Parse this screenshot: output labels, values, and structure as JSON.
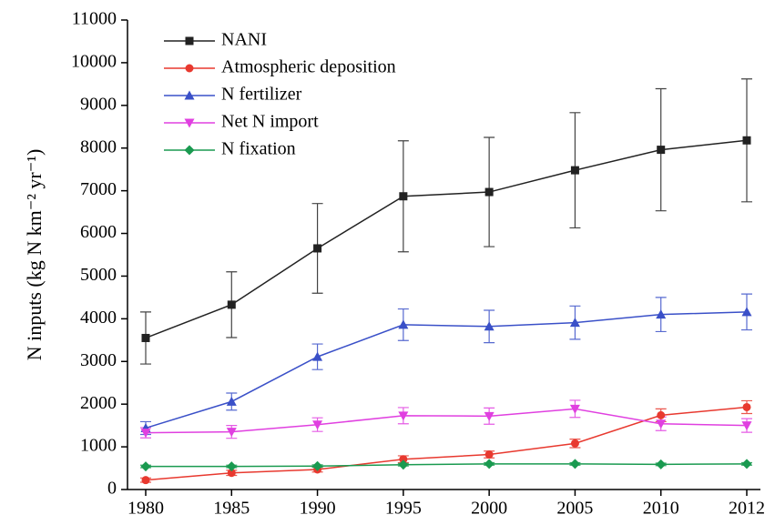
{
  "chart_data": {
    "type": "line",
    "ylabel": "N inputs (kg N km⁻² yr⁻¹)",
    "categories": [
      "1980",
      "1985",
      "1990",
      "1995",
      "2000",
      "2005",
      "2010",
      "2012"
    ],
    "ylim": [
      0,
      11000
    ],
    "yticks": [
      0,
      1000,
      2000,
      3000,
      4000,
      5000,
      6000,
      7000,
      8000,
      9000,
      10000,
      11000
    ],
    "legend": "upper left",
    "series": [
      {
        "name": "NANI",
        "color": "#222222",
        "marker": "square",
        "values": [
          3550,
          4330,
          5650,
          6870,
          6970,
          7480,
          7960,
          8180
        ],
        "errors": [
          610,
          770,
          1050,
          1300,
          1280,
          1350,
          1430,
          1440
        ]
      },
      {
        "name": "Atmospheric deposition",
        "color": "#e8392f",
        "marker": "circle",
        "values": [
          220,
          390,
          470,
          710,
          820,
          1080,
          1740,
          1930
        ],
        "errors": [
          50,
          60,
          60,
          80,
          80,
          100,
          150,
          150
        ]
      },
      {
        "name": "N fertilizer",
        "color": "#3a50c8",
        "marker": "triangle-up",
        "values": [
          1440,
          2060,
          3110,
          3860,
          3820,
          3910,
          4100,
          4160
        ],
        "errors": [
          150,
          200,
          300,
          370,
          380,
          390,
          400,
          420
        ]
      },
      {
        "name": "Net N import",
        "color": "#e040e0",
        "marker": "triangle-down",
        "values": [
          1330,
          1350,
          1520,
          1730,
          1720,
          1890,
          1540,
          1500
        ],
        "errors": [
          120,
          150,
          160,
          190,
          190,
          200,
          160,
          160
        ]
      },
      {
        "name": "N fixation",
        "color": "#1a9a50",
        "marker": "diamond",
        "values": [
          540,
          540,
          550,
          580,
          600,
          600,
          590,
          600
        ],
        "errors": [
          30,
          30,
          30,
          30,
          30,
          30,
          30,
          30
        ]
      }
    ]
  }
}
